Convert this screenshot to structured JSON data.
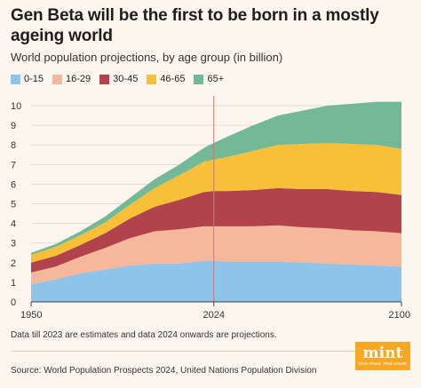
{
  "header": {
    "title": "Gen Beta will be the first to be born in a mostly ageing world",
    "subtitle": "World population projections, by age group (in billion)"
  },
  "footer": {
    "note": "Data till 2023 are estimates and data 2024 onwards are projections.",
    "source": "Source: World Population Prospects 2024, United Nations Population Division"
  },
  "logo": {
    "word": "mint",
    "tagline": "Think Ahead. Think Growth."
  },
  "chart_data": {
    "type": "area",
    "stacked": true,
    "x": [
      1950,
      1960,
      1970,
      1980,
      1990,
      2000,
      2010,
      2020,
      2024,
      2030,
      2040,
      2050,
      2060,
      2070,
      2080,
      2090,
      2100
    ],
    "series": [
      {
        "name": "0-15",
        "color": "#8ec4ea",
        "values": [
          0.9,
          1.15,
          1.45,
          1.65,
          1.85,
          1.95,
          1.95,
          2.1,
          2.1,
          2.05,
          2.05,
          2.05,
          2.0,
          1.95,
          1.9,
          1.85,
          1.8
        ]
      },
      {
        "name": "16-29",
        "color": "#f6b89b",
        "values": [
          0.6,
          0.65,
          0.85,
          1.1,
          1.4,
          1.65,
          1.75,
          1.75,
          1.75,
          1.8,
          1.8,
          1.85,
          1.8,
          1.8,
          1.75,
          1.75,
          1.7
        ]
      },
      {
        "name": "30-45",
        "color": "#b1434d",
        "values": [
          0.5,
          0.55,
          0.6,
          0.75,
          1.0,
          1.25,
          1.5,
          1.75,
          1.8,
          1.8,
          1.85,
          1.9,
          1.95,
          2.0,
          2.0,
          2.0,
          1.95
        ]
      },
      {
        "name": "46-65",
        "color": "#f8c038",
        "values": [
          0.4,
          0.45,
          0.5,
          0.55,
          0.7,
          0.95,
          1.25,
          1.55,
          1.6,
          1.75,
          2.0,
          2.2,
          2.3,
          2.35,
          2.4,
          2.4,
          2.35
        ]
      },
      {
        "name": "65+",
        "color": "#74b996",
        "values": [
          0.1,
          0.15,
          0.2,
          0.3,
          0.35,
          0.45,
          0.55,
          0.7,
          0.85,
          1.05,
          1.3,
          1.5,
          1.7,
          1.9,
          2.05,
          2.2,
          2.4
        ]
      }
    ],
    "xticks": [
      "1950",
      "2024",
      "2100"
    ],
    "yticks": [
      0,
      1,
      2,
      3,
      4,
      5,
      6,
      7,
      8,
      9,
      10
    ],
    "xlim": [
      1950,
      2100
    ],
    "ylim": [
      0,
      10.5
    ],
    "marker_year": 2024,
    "grid": true,
    "legend_position": "top-left"
  }
}
